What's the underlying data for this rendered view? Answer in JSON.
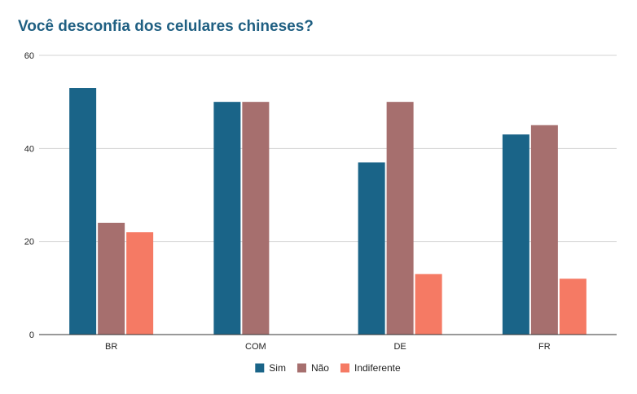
{
  "chart_data": {
    "type": "bar",
    "title": "Você desconfia dos celulares chineses?",
    "categories": [
      "BR",
      "COM",
      "DE",
      "FR"
    ],
    "series": [
      {
        "name": "Sim",
        "values": [
          53,
          50,
          37,
          43
        ],
        "color": "#1a6488"
      },
      {
        "name": "Não",
        "values": [
          24,
          50,
          50,
          45
        ],
        "color": "#a66f6e"
      },
      {
        "name": "Indiferente",
        "values": [
          22,
          0,
          13,
          12
        ],
        "color": "#f57a64"
      }
    ],
    "yticks": [
      0,
      20,
      40,
      60
    ],
    "ylim": [
      0,
      60
    ],
    "grid": true,
    "legend": "bottom"
  }
}
